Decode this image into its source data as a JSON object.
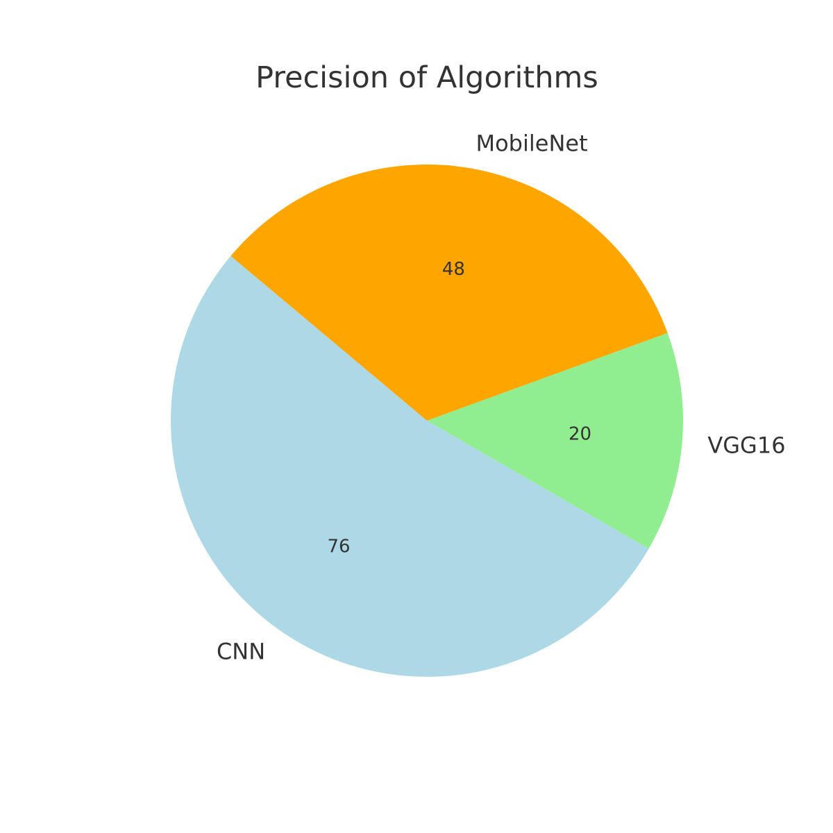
{
  "chart_data": {
    "type": "pie",
    "title": "Precision of Algorithms",
    "labels": [
      "MobileNet",
      "VGG16",
      "CNN"
    ],
    "values": [
      48,
      20,
      76
    ],
    "colors": [
      "#ffa500",
      "#90ee90",
      "#add8e6"
    ],
    "start_angle_deg": 140,
    "direction": "clockwise",
    "value_labels_shown": true,
    "legend": "none"
  }
}
